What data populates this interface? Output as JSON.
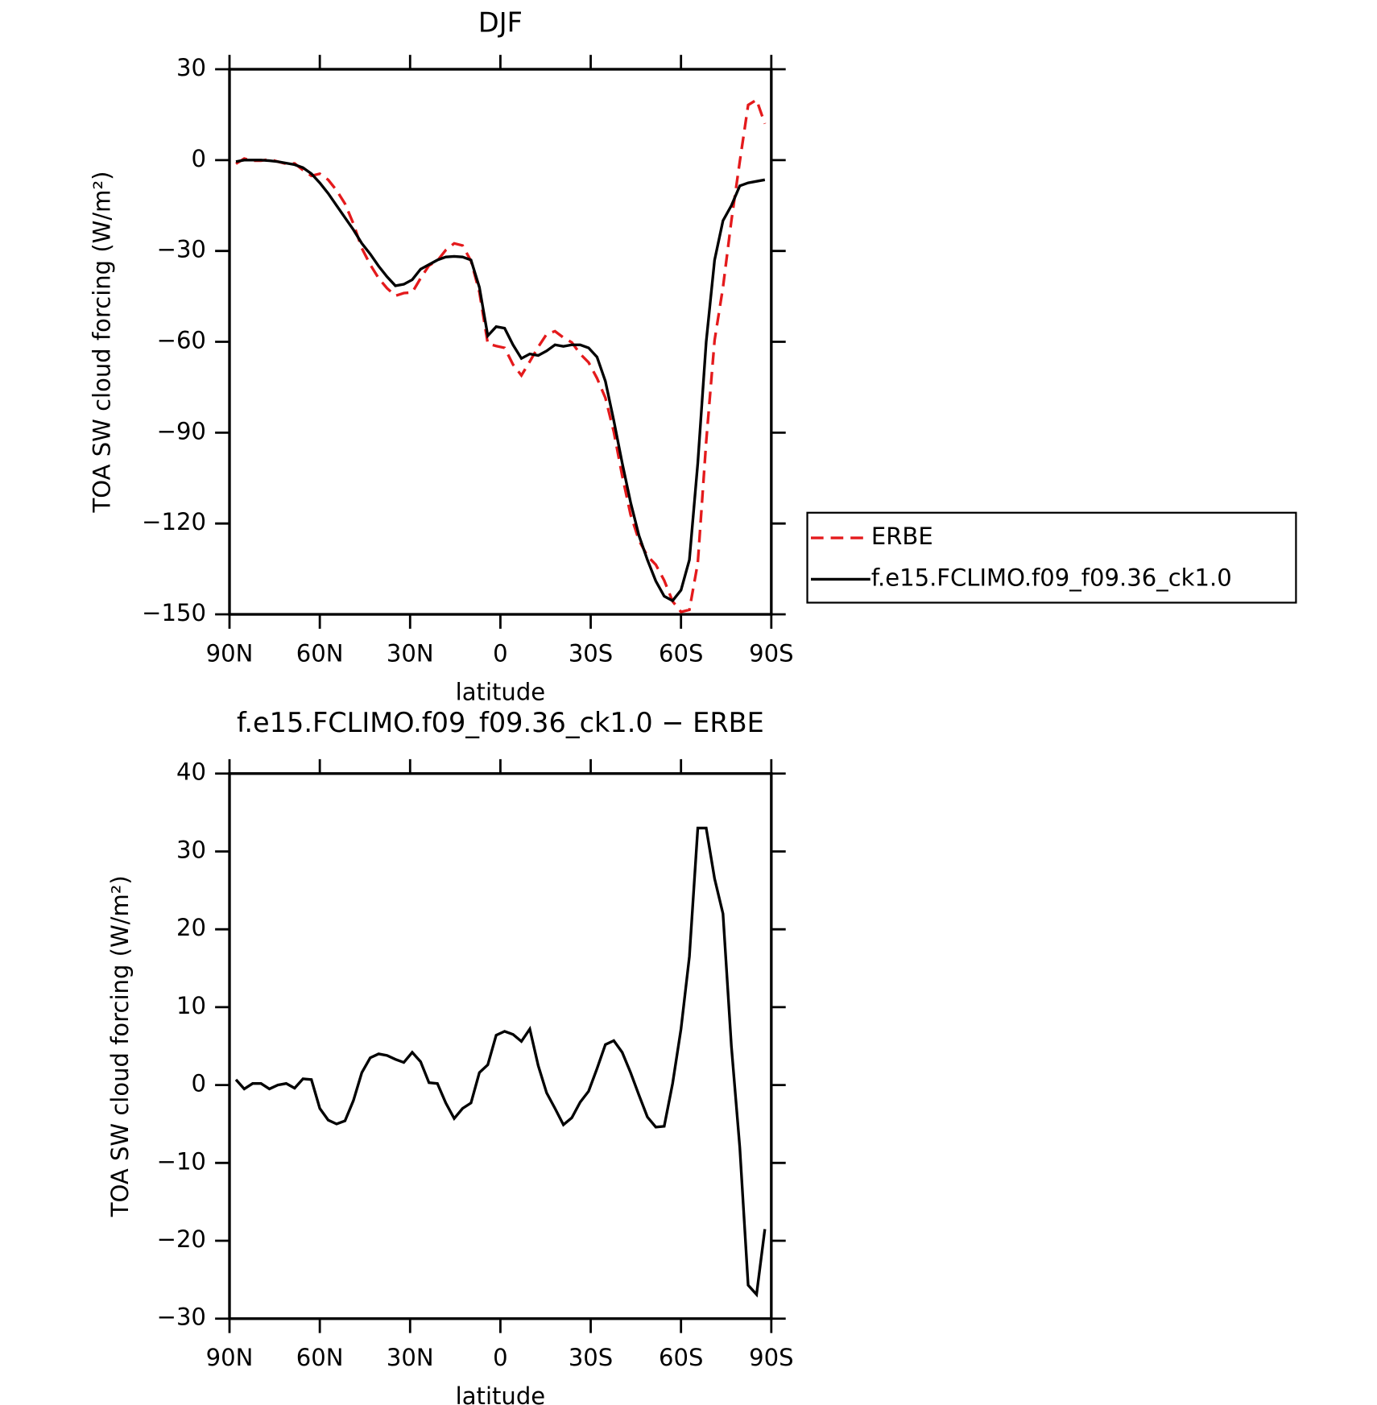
{
  "chart_data": [
    {
      "type": "line",
      "title": "DJF",
      "xlabel": "latitude",
      "ylabel": "TOA SW cloud forcing (W/m²)",
      "x": [
        87.86,
        85.1,
        82.31,
        79.53,
        76.74,
        73.95,
        71.16,
        68.37,
        65.58,
        62.79,
        60.0,
        57.21,
        54.42,
        51.63,
        48.84,
        46.04,
        43.25,
        40.46,
        37.67,
        34.88,
        32.09,
        29.3,
        26.51,
        23.72,
        20.93,
        18.14,
        15.35,
        12.56,
        9.77,
        6.98,
        4.19,
        1.4,
        -1.4,
        -4.19,
        -6.98,
        -9.77,
        -12.56,
        -15.35,
        -18.14,
        -20.93,
        -23.72,
        -26.51,
        -29.3,
        -32.09,
        -34.88,
        -37.67,
        -40.46,
        -43.25,
        -46.04,
        -48.84,
        -51.63,
        -54.42,
        -57.21,
        -60.0,
        -62.79,
        -65.58,
        -68.37,
        -71.16,
        -73.95,
        -76.74,
        -79.53,
        -82.31,
        -85.1,
        -87.86
      ],
      "series": [
        {
          "name": "ERBE",
          "color": "#e41a1c",
          "linestyle": "dashed",
          "values": [
            -1.2,
            0.5,
            -0.2,
            -0.2,
            0.3,
            -0.5,
            -1.2,
            -1.1,
            -3.3,
            -5.2,
            -4.5,
            -6.5,
            -10,
            -14.4,
            -21,
            -29.1,
            -34.5,
            -39,
            -42.3,
            -44.8,
            -43.9,
            -43.7,
            -39,
            -34.8,
            -33.2,
            -29.7,
            -27.5,
            -28.2,
            -33.3,
            -43.6,
            -60.6,
            -61.4,
            -62,
            -67.5,
            -71.1,
            -66.5,
            -61.7,
            -57.5,
            -56.5,
            -58.6,
            -60.2,
            -64,
            -66.8,
            -72,
            -78.5,
            -89.7,
            -104.2,
            -117.1,
            -125.6,
            -130.7,
            -133.6,
            -138.8,
            -145.7,
            -149.2,
            -148.5,
            -133,
            -93,
            -59.5,
            -42,
            -20,
            -0.5,
            18.2,
            19.9,
            12
          ]
        },
        {
          "name": "f.e15.FCLIMO.f09_f09.36_ck1.0",
          "color": "#000000",
          "linestyle": "solid",
          "values": [
            -0.5,
            0,
            0,
            0,
            -0.2,
            -0.5,
            -1,
            -1.5,
            -2.5,
            -4.5,
            -7.5,
            -11,
            -15,
            -19,
            -23,
            -27.5,
            -31,
            -35,
            -38.5,
            -41.5,
            -41,
            -39.5,
            -36,
            -34.5,
            -33,
            -32,
            -31.8,
            -32,
            -33,
            -42,
            -58,
            -55,
            -55.5,
            -61,
            -65.5,
            -64,
            -64.5,
            -63,
            -61,
            -61.5,
            -61,
            -61,
            -62,
            -65,
            -73,
            -86,
            -100,
            -113,
            -124,
            -132,
            -139,
            -144,
            -145.5,
            -142,
            -132,
            -100,
            -60,
            -33,
            -20,
            -15,
            -8.5,
            -7.5,
            -7,
            -6.5
          ]
        }
      ],
      "xlim": [
        90,
        -90
      ],
      "xticks": [
        {
          "value": 90,
          "label": "90N"
        },
        {
          "value": 60,
          "label": "60N"
        },
        {
          "value": 30,
          "label": "30N"
        },
        0,
        {
          "value": -30,
          "label": "30S"
        },
        {
          "value": -60,
          "label": "60S"
        },
        {
          "value": -90,
          "label": "90S"
        }
      ],
      "ylim": [
        -150,
        30
      ],
      "yticks": [
        {
          "value": -150,
          "label": "−150"
        },
        {
          "value": -120,
          "label": "−120"
        },
        {
          "value": -90,
          "label": "−90"
        },
        {
          "value": -60,
          "label": "−60"
        },
        {
          "value": -30,
          "label": "−30"
        },
        0,
        30
      ],
      "legend": "right"
    },
    {
      "type": "line",
      "title": "f.e15.FCLIMO.f09_f09.36_ck1.0 − ERBE",
      "xlabel": "latitude",
      "ylabel": "TOA SW cloud forcing (W/m²)",
      "x": [
        87.86,
        85.1,
        82.31,
        79.53,
        76.74,
        73.95,
        71.16,
        68.37,
        65.58,
        62.79,
        60.0,
        57.21,
        54.42,
        51.63,
        48.84,
        46.04,
        43.25,
        40.46,
        37.67,
        34.88,
        32.09,
        29.3,
        26.51,
        23.72,
        20.93,
        18.14,
        15.35,
        12.56,
        9.77,
        6.98,
        4.19,
        1.4,
        -1.4,
        -4.19,
        -6.98,
        -9.77,
        -12.56,
        -15.35,
        -18.14,
        -20.93,
        -23.72,
        -26.51,
        -29.3,
        -32.09,
        -34.88,
        -37.67,
        -40.46,
        -43.25,
        -46.04,
        -48.84,
        -51.63,
        -54.42,
        -57.21,
        -60.0,
        -62.79,
        -65.58,
        -68.37,
        -71.16,
        -73.95,
        -76.74,
        -79.53,
        -82.31,
        -85.1,
        -87.86
      ],
      "values": [
        0.7,
        -0.5,
        0.2,
        0.2,
        -0.5,
        0,
        0.2,
        -0.4,
        0.8,
        0.7,
        -3,
        -4.5,
        -5,
        -4.6,
        -2,
        1.6,
        3.5,
        4,
        3.8,
        3.3,
        2.9,
        4.2,
        3,
        0.3,
        0.2,
        -2.3,
        -4.3,
        -3,
        -2.3,
        1.6,
        2.6,
        6.4,
        6.9,
        6.5,
        5.6,
        7.2,
        2.5,
        -1,
        -3,
        -5.1,
        -4.2,
        -2.2,
        -0.8,
        2.1,
        5.2,
        5.7,
        4.2,
        1.6,
        -1.3,
        -4.1,
        -5.4,
        -5.3,
        0.2,
        7.2,
        16.5,
        33,
        33,
        26.5,
        22,
        5,
        -8,
        -25.7,
        -26.9,
        -18.5
      ],
      "color": "#000000",
      "linestyle": "solid",
      "xlim": [
        90,
        -90
      ],
      "xticks": [
        {
          "value": 90,
          "label": "90N"
        },
        {
          "value": 60,
          "label": "60N"
        },
        {
          "value": 30,
          "label": "30N"
        },
        0,
        {
          "value": -30,
          "label": "30S"
        },
        {
          "value": -60,
          "label": "60S"
        },
        {
          "value": -90,
          "label": "90S"
        }
      ],
      "ylim": [
        -30,
        40
      ],
      "yticks": [
        {
          "value": -30,
          "label": "−30"
        },
        {
          "value": -20,
          "label": "−20"
        },
        {
          "value": -10,
          "label": "−10"
        },
        0,
        10,
        20,
        30,
        40
      ]
    }
  ]
}
